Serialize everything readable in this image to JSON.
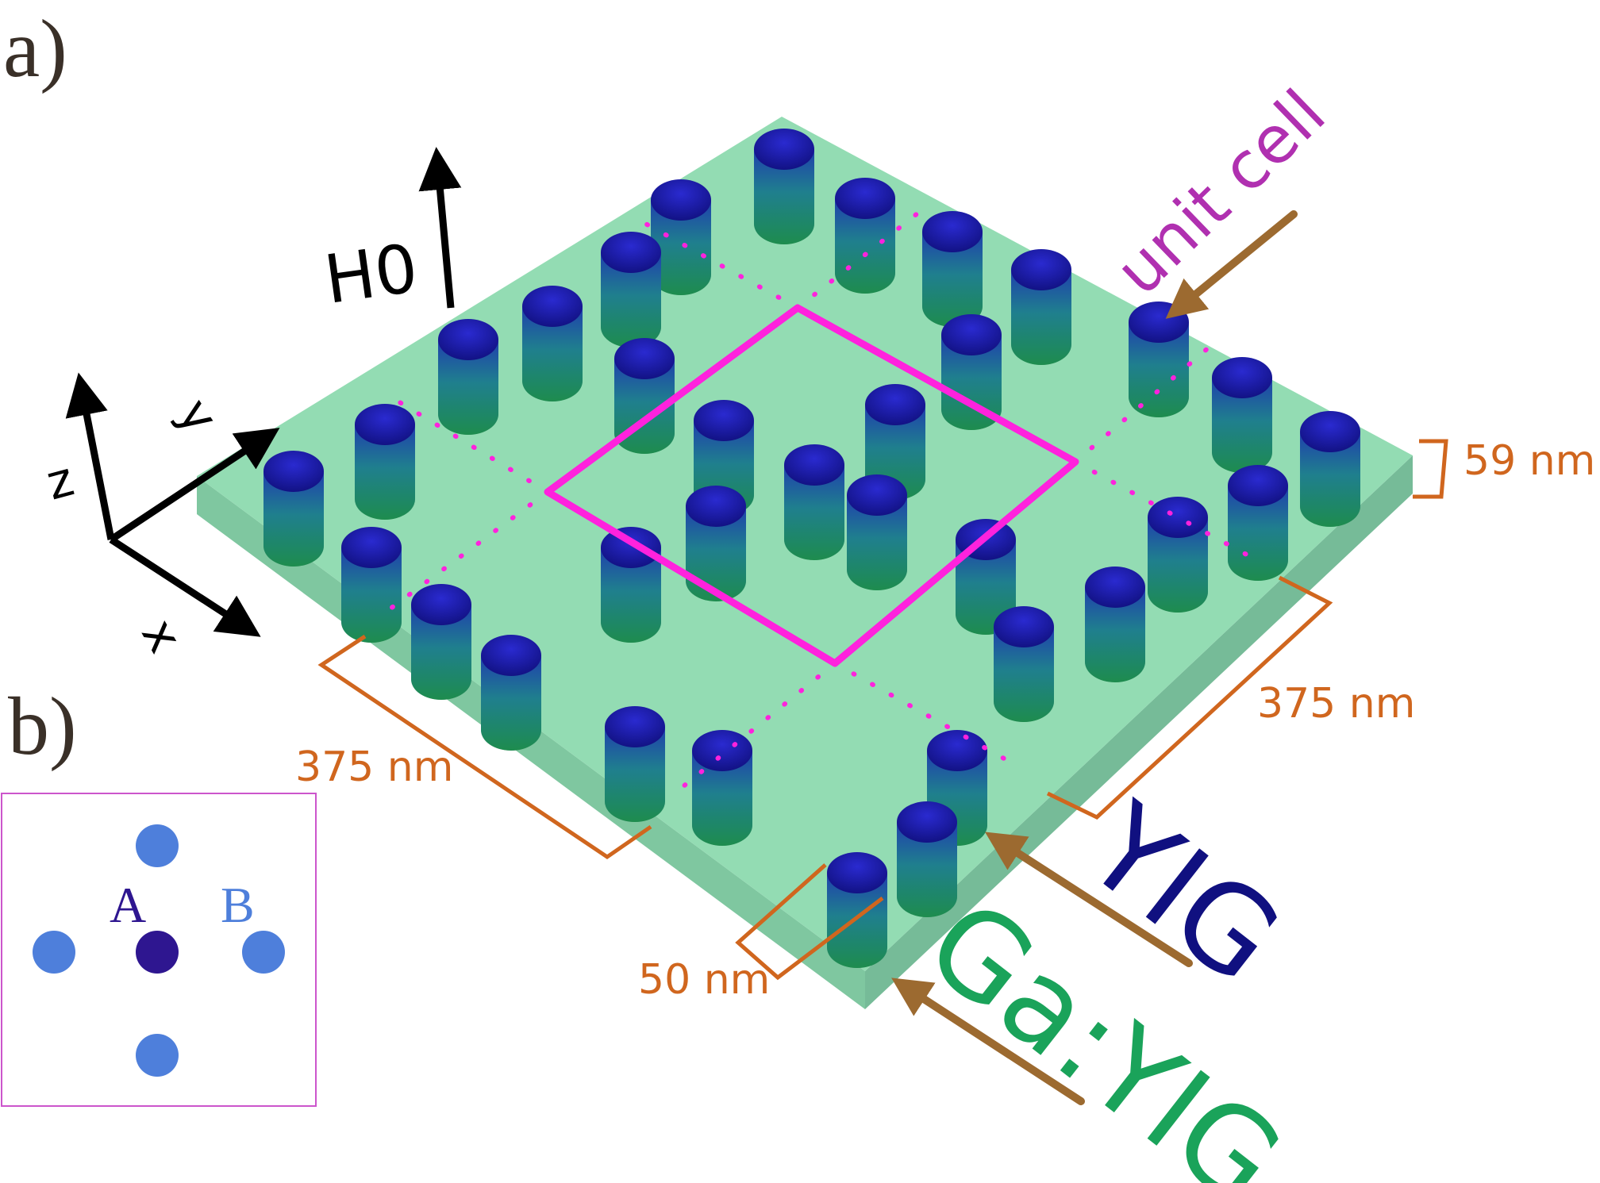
{
  "panel_a_label": "a)",
  "panel_b_label": "b)",
  "field_label": "H0",
  "axes": {
    "z": "z",
    "y": "y",
    "x": "x"
  },
  "annotations": {
    "unit_cell": "unit cell",
    "thickness": "59 nm",
    "length_left": "375 nm",
    "length_right": "375 nm",
    "diameter": "50 nm",
    "rod_material": "YIG",
    "slab_material": "Ga:YIG"
  },
  "inset": {
    "site_a": "A",
    "site_b": "B"
  },
  "colors": {
    "slab": "#8fd9b0",
    "rod_top": "#1a1aa0",
    "rod_body": "#1f8a5a",
    "unit_cell_line": "#ff22dd",
    "dimension": "#d0661e",
    "yig_text": "#101080",
    "gayig_text": "#1aa35a",
    "unit_cell_text": "#b030b0",
    "site_a": "#2e1690",
    "site_b": "#4e7fdb"
  }
}
